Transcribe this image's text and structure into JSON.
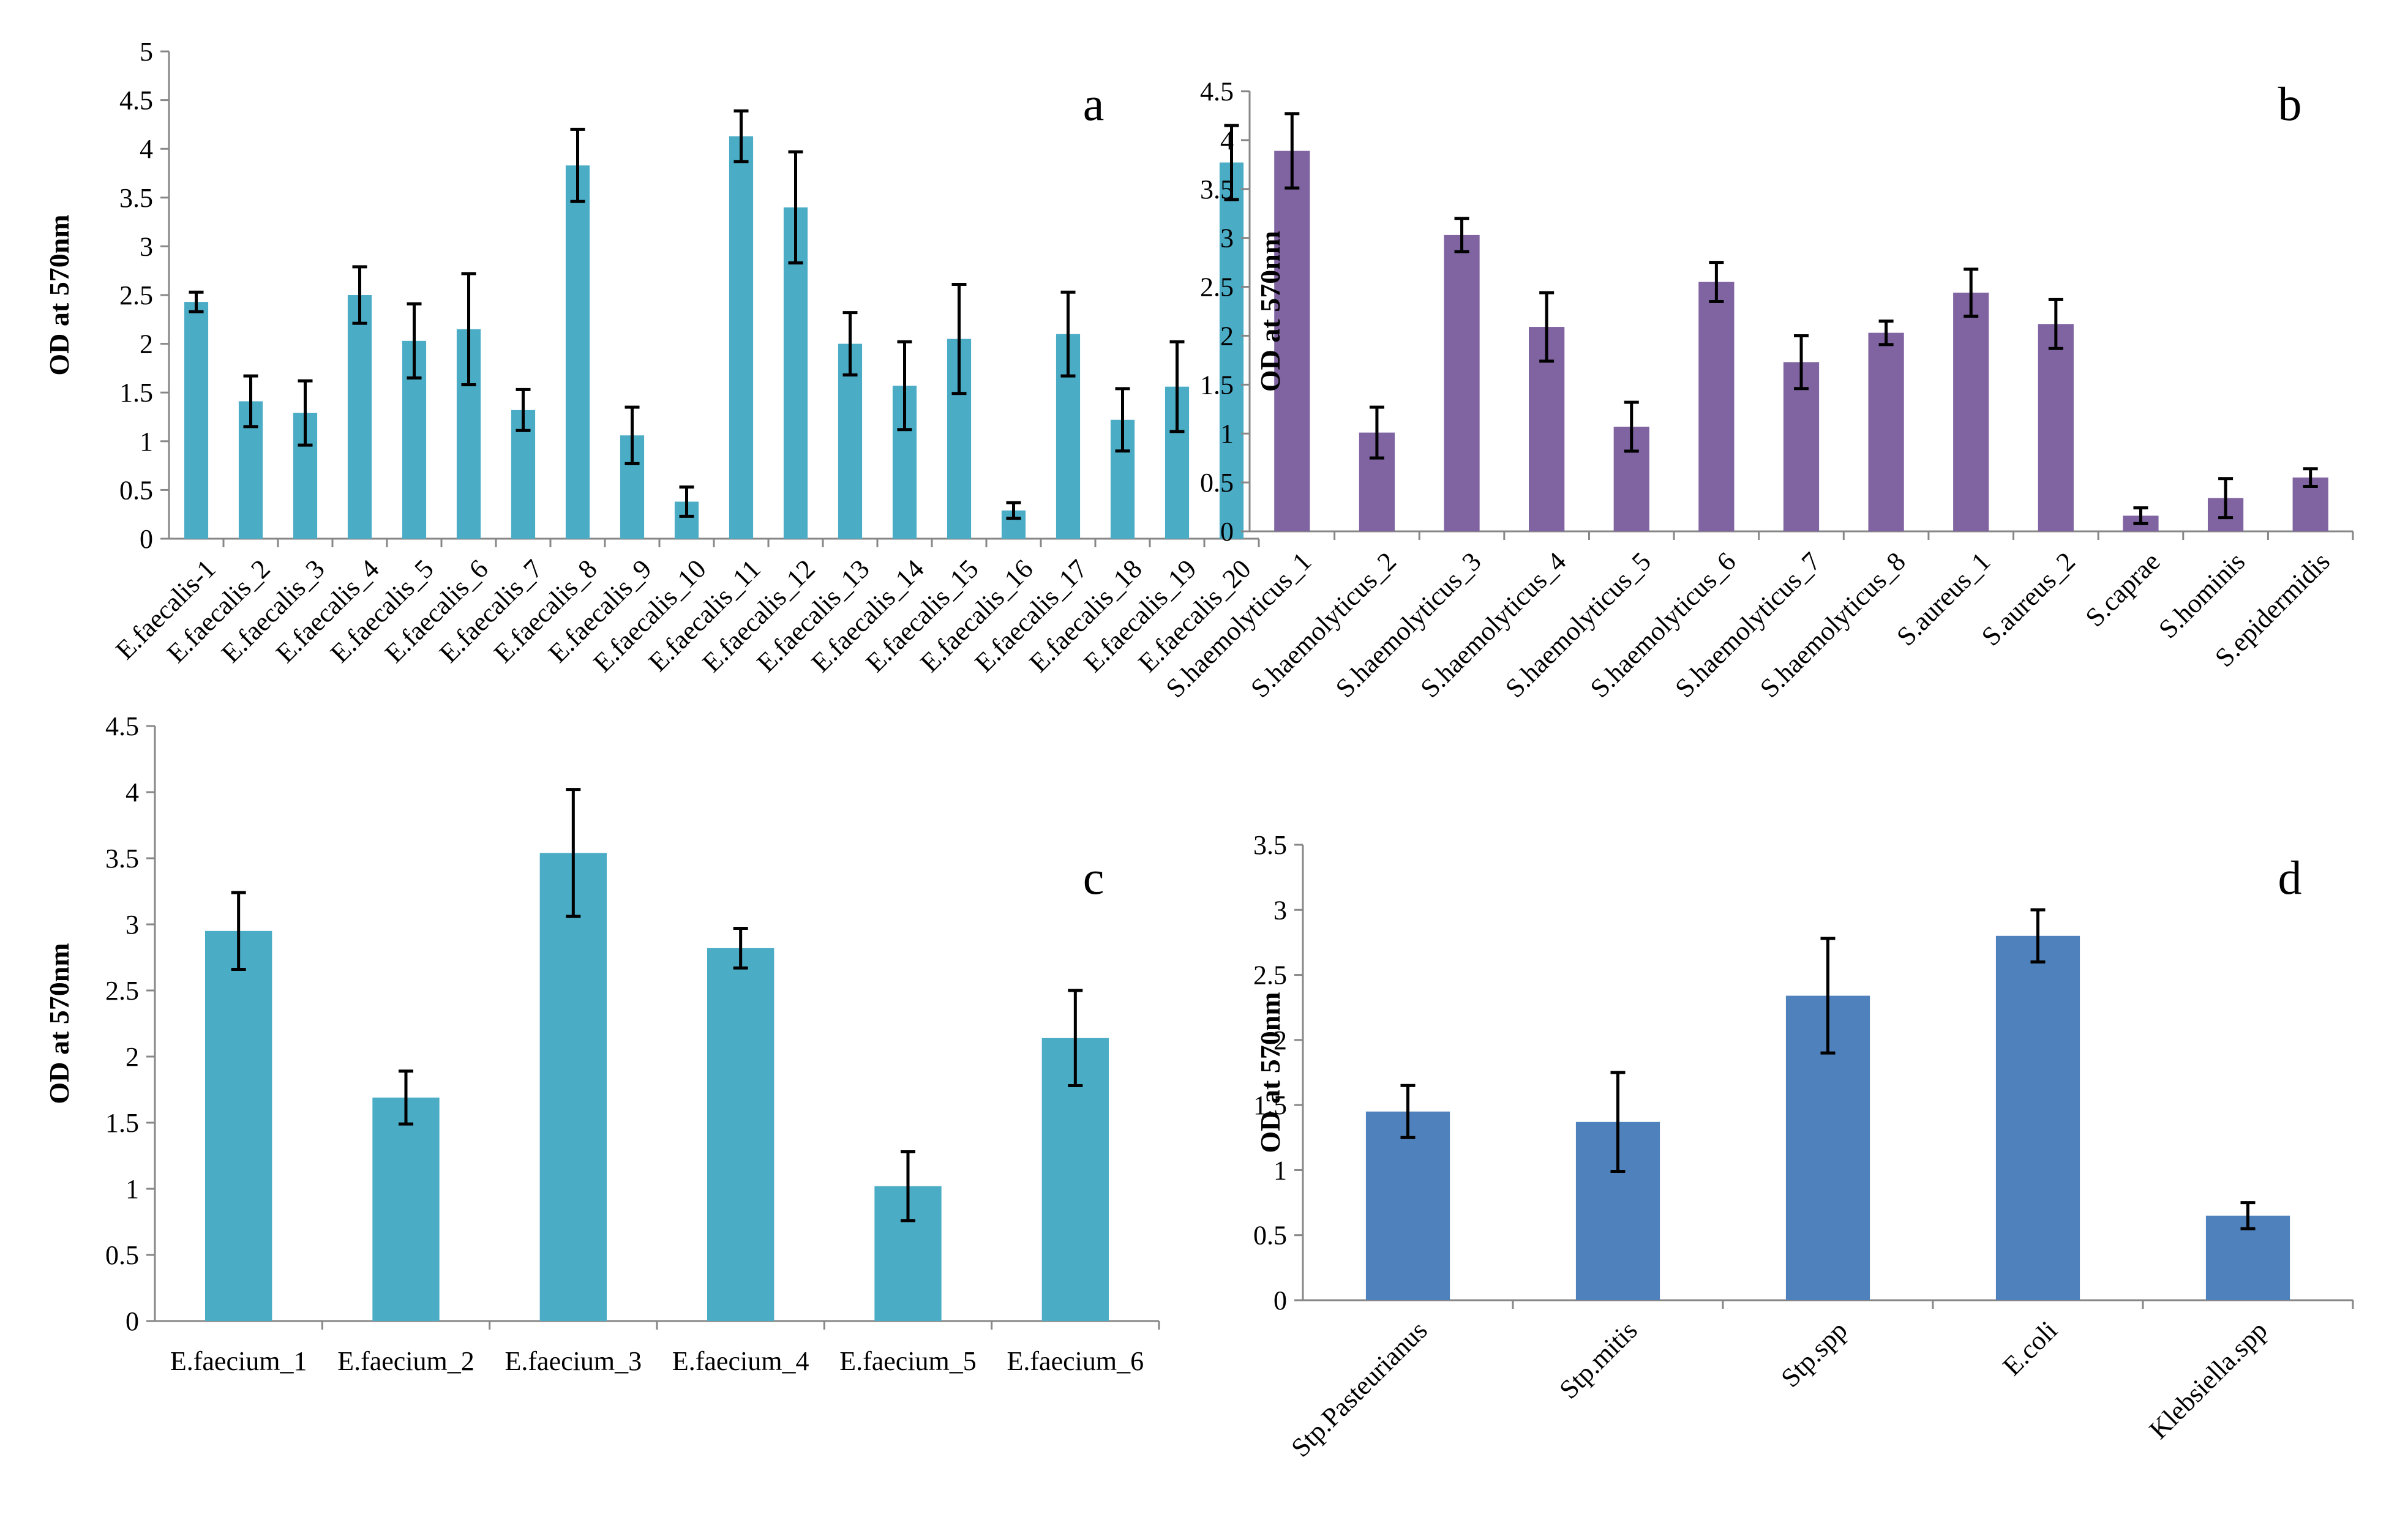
{
  "figure": {
    "description_panels": [
      "a",
      "b",
      "c",
      "d"
    ]
  },
  "chart_data": [
    {
      "panel": "a",
      "type": "bar",
      "color": "#4bacc6",
      "ylabel": "OD at 570nm",
      "ylim": [
        0,
        5
      ],
      "yticks": [
        "0",
        "0.5",
        "1",
        "1.5",
        "2",
        "2.5",
        "3",
        "3.5",
        "4",
        "4.5",
        "5"
      ],
      "categories": [
        "E.faecalis-1",
        "E.faecalis_2",
        "E.faecalis_3",
        "E.faecalis_4",
        "E.faecalis_5",
        "E.faecalis_6",
        "E.faecalis_7",
        "E.faecalis_8",
        "E.faecalis_9",
        "E.faecalis_10",
        "E.faecalis_11",
        "E.faecalis_12",
        "E.faecalis_13",
        "E.faecalis_14",
        "E.faecalis_15",
        "E.faecalis_16",
        "E.faecalis_17",
        "E.faecalis_18",
        "E.faecalis_19",
        "E.faecalis_20"
      ],
      "values": [
        2.43,
        1.41,
        1.29,
        2.5,
        2.03,
        2.15,
        1.32,
        3.83,
        1.06,
        0.38,
        4.13,
        3.4,
        2.0,
        1.57,
        2.05,
        0.29,
        2.1,
        1.22,
        1.56,
        3.86
      ],
      "errors": [
        0.1,
        0.26,
        0.33,
        0.29,
        0.38,
        0.57,
        0.21,
        0.37,
        0.29,
        0.15,
        0.26,
        0.57,
        0.32,
        0.45,
        0.56,
        0.08,
        0.43,
        0.32,
        0.46,
        0.38
      ]
    },
    {
      "panel": "b",
      "type": "bar",
      "color": "#8064a2",
      "ylabel": "OD at 570nm",
      "ylim": [
        0,
        4.5
      ],
      "yticks": [
        "0",
        "0.5",
        "1",
        "1.5",
        "2",
        "2.5",
        "3",
        "3.5",
        "4",
        "4.5"
      ],
      "categories": [
        "S.haemolyticus_1",
        "S.haemolyticus_2",
        "S.haemolyticus_3",
        "S.haemolyticus_4",
        "S.haemolyticus_5",
        "S.haemolyticus_6",
        "S.haemolyticus_7",
        "S.haemolyticus_8",
        "S.aureus_1",
        "S.aureus_2",
        "S.caprae",
        "S.hominis",
        "S.epidermidis"
      ],
      "values": [
        3.89,
        1.01,
        3.03,
        2.09,
        1.07,
        2.55,
        1.73,
        2.03,
        2.44,
        2.12,
        0.16,
        0.34,
        0.55
      ],
      "errors": [
        0.38,
        0.26,
        0.17,
        0.35,
        0.25,
        0.2,
        0.27,
        0.12,
        0.24,
        0.25,
        0.08,
        0.2,
        0.09
      ]
    },
    {
      "panel": "c",
      "type": "bar",
      "color": "#4bacc6",
      "ylabel": "OD at 570nm",
      "ylim": [
        0,
        4.5
      ],
      "yticks": [
        "0",
        "0.5",
        "1",
        "1.5",
        "2",
        "2.5",
        "3",
        "3.5",
        "4",
        "4.5"
      ],
      "categories": [
        "E.faecium_1",
        "E.faecium_2",
        "E.faecium_3",
        "E.faecium_4",
        "E.faecium_5",
        "E.faecium_6"
      ],
      "values": [
        2.95,
        1.69,
        3.54,
        2.82,
        1.02,
        2.14
      ],
      "errors": [
        0.29,
        0.2,
        0.48,
        0.15,
        0.26,
        0.36
      ]
    },
    {
      "panel": "d",
      "type": "bar",
      "color": "#4f81bd",
      "ylabel": "OD at 570nm",
      "ylim": [
        0,
        3.5
      ],
      "yticks": [
        "0",
        "0.5",
        "1",
        "1.5",
        "2",
        "2.5",
        "3",
        "3.5"
      ],
      "categories": [
        "Stp.Pasteurianus",
        "Stp.mitis",
        "Stp.spp",
        "E.coli",
        "Klebsiella.spp"
      ],
      "values": [
        1.45,
        1.37,
        2.34,
        2.8,
        0.65
      ],
      "errors": [
        0.2,
        0.38,
        0.44,
        0.2,
        0.1
      ]
    }
  ]
}
